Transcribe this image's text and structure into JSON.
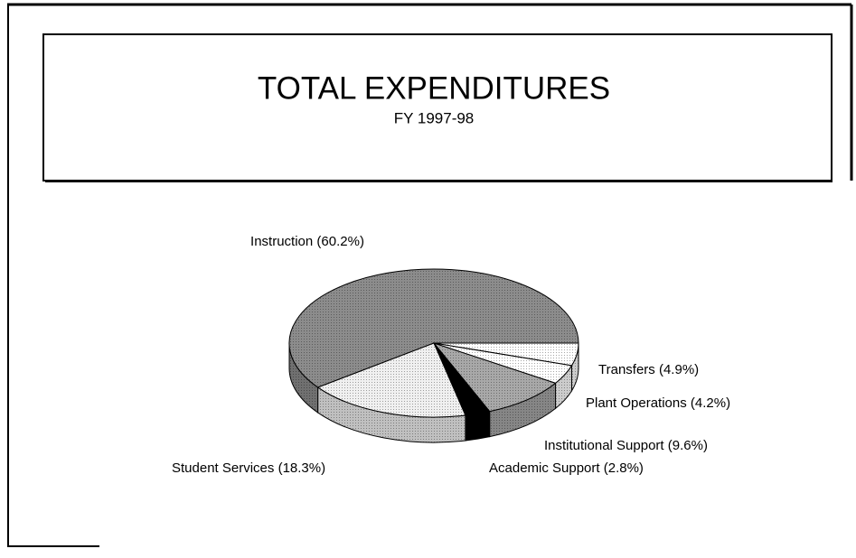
{
  "chart_data": {
    "type": "pie",
    "title": "TOTAL EXPENDITURES",
    "subtitle": "FY 1997-98",
    "categories": [
      "Instruction",
      "Transfers",
      "Plant Operations",
      "Institutional Support",
      "Academic Support",
      "Student Services"
    ],
    "values": [
      60.2,
      4.9,
      4.2,
      9.6,
      2.8,
      18.3
    ],
    "value_labels": [
      "(60.2%)",
      "(4.9%)",
      "(4.2%)",
      "(9.6%)",
      "(2.8%)",
      "(18.3%)"
    ],
    "colors": [
      "#8c8c8c",
      "#ffffff",
      "#ffffff",
      "#a8a8a8",
      "#000000",
      "#f0f0f0"
    ]
  }
}
